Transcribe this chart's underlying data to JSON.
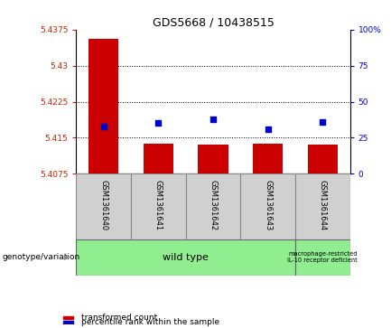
{
  "title": "GDS5668 / 10438515",
  "samples": [
    "GSM1361640",
    "GSM1361641",
    "GSM1361642",
    "GSM1361643",
    "GSM1361644"
  ],
  "bar_values": [
    5.4355,
    5.4138,
    5.4135,
    5.4138,
    5.4135
  ],
  "bar_bottom": 5.4075,
  "blue_percentile": [
    33,
    35,
    38,
    31,
    36
  ],
  "ylim": [
    5.4075,
    5.4375
  ],
  "yticks_left": [
    5.4075,
    5.415,
    5.4225,
    5.43,
    5.4375
  ],
  "yticks_left_labels": [
    "5.4075",
    "5.415",
    "5.4225",
    "5.43",
    "5.4375"
  ],
  "yticks_right": [
    0,
    25,
    50,
    75,
    100
  ],
  "yticks_right_labels": [
    "0",
    "25",
    "50",
    "75",
    "100%"
  ],
  "bar_color": "#cc0000",
  "blue_color": "#0000cc",
  "left_tick_color": "#cc2200",
  "right_tick_color": "#0000cc",
  "cell_bg_gray": "#d0d0d0",
  "cell_bg_green_light": "#90ee90",
  "genotype_label": "genotype/variation",
  "group1_label": "wild type",
  "group2_label": "macrophage-restricted\nIL-10 receptor deficient",
  "legend_red_label": "transformed count",
  "legend_blue_label": "percentile rank within the sample",
  "group1_count": 4,
  "group2_count": 1
}
